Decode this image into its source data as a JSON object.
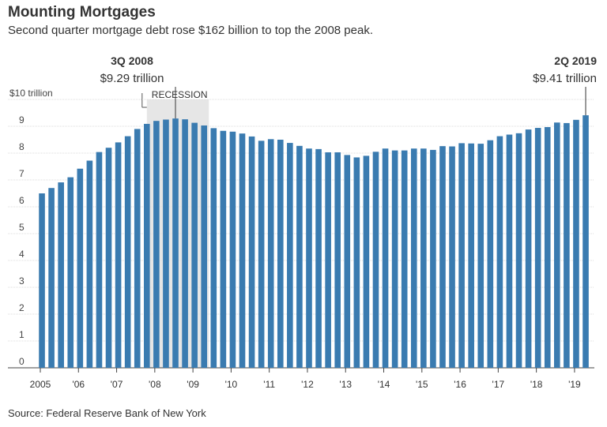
{
  "chart_data": {
    "type": "bar",
    "title": "Mounting Mortgages",
    "subtitle": "Second quarter mortgage debt rose $162 billion to top the 2008 peak.",
    "source": "Source: Federal Reserve Bank of New York",
    "recession_label": "RECESSION",
    "categories": [
      "2005",
      null,
      null,
      null,
      "'06",
      null,
      null,
      null,
      "'07",
      null,
      null,
      null,
      "'08",
      null,
      null,
      null,
      "'09",
      null,
      null,
      null,
      "'10",
      null,
      null,
      null,
      "'11",
      null,
      null,
      null,
      "'12",
      null,
      null,
      null,
      "'13",
      null,
      null,
      null,
      "'14",
      null,
      null,
      null,
      "'15",
      null,
      null,
      null,
      "'16",
      null,
      null,
      null,
      "'17",
      null,
      null,
      null,
      "'18",
      null,
      null,
      null,
      "'19",
      null
    ],
    "values": [
      6.5,
      6.7,
      6.91,
      7.1,
      7.42,
      7.72,
      8.04,
      8.2,
      8.4,
      8.63,
      8.9,
      9.09,
      9.2,
      9.25,
      9.29,
      9.26,
      9.13,
      9.03,
      8.93,
      8.83,
      8.8,
      8.73,
      8.62,
      8.46,
      8.52,
      8.5,
      8.38,
      8.27,
      8.17,
      8.15,
      8.03,
      8.03,
      7.93,
      7.84,
      7.9,
      8.05,
      8.17,
      8.1,
      8.1,
      8.17,
      8.17,
      8.12,
      8.26,
      8.25,
      8.37,
      8.36,
      8.35,
      8.48,
      8.63,
      8.69,
      8.74,
      8.88,
      8.94,
      8.97,
      9.14,
      9.12,
      9.24,
      9.41
    ],
    "value_labels": [
      null,
      null,
      null,
      null,
      null,
      null,
      null,
      null,
      null,
      null,
      null,
      null,
      null,
      null,
      "$9.29 trillion",
      null,
      null,
      null,
      null,
      null,
      null,
      null,
      null,
      null,
      null,
      null,
      null,
      null,
      null,
      null,
      null,
      null,
      null,
      null,
      null,
      null,
      null,
      null,
      null,
      null,
      null,
      null,
      null,
      null,
      null,
      null,
      null,
      null,
      null,
      null,
      null,
      null,
      null,
      null,
      null,
      null,
      null,
      "$9.41 trillion"
    ],
    "annotations": [
      {
        "text": "3Q 2008",
        "index": 14
      },
      {
        "text": "2Q 2019",
        "index": 57
      }
    ],
    "color": "#3a7bb0",
    "ylim": [
      0,
      10
    ],
    "yticks": [
      0,
      1,
      2,
      3,
      4,
      5,
      6,
      7,
      8,
      9,
      {
        "value": 10,
        "label": "$10 trillion"
      }
    ],
    "grid": true
  }
}
